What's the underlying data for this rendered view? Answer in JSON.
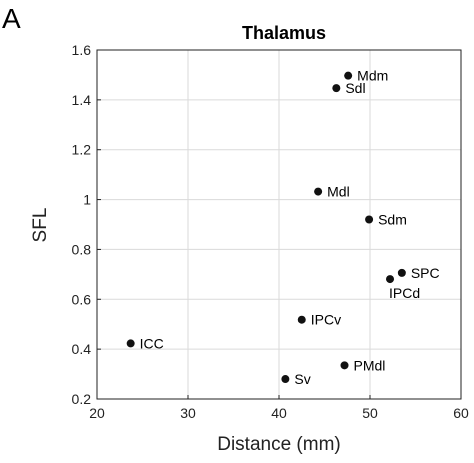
{
  "panel_letter": "A",
  "chart_data": {
    "type": "scatter",
    "title": "Thalamus",
    "xlabel": "Distance (mm)",
    "ylabel": "SFL",
    "xlim": [
      20,
      60
    ],
    "ylim": [
      0.2,
      1.6
    ],
    "x_ticks": [
      20,
      30,
      40,
      50,
      60
    ],
    "y_ticks": [
      0.2,
      0.4,
      0.6,
      0.8,
      1,
      1.2,
      1.4,
      1.6
    ],
    "grid": true,
    "legend": "none",
    "marker_color": "#111111",
    "points": [
      {
        "label": "Mdm",
        "x": 47.6,
        "y": 1.497,
        "label_side": "right"
      },
      {
        "label": "Sdl",
        "x": 46.3,
        "y": 1.447,
        "label_side": "right"
      },
      {
        "label": "Mdl",
        "x": 44.3,
        "y": 1.032,
        "label_side": "right"
      },
      {
        "label": "Sdm",
        "x": 49.9,
        "y": 0.92,
        "label_side": "right"
      },
      {
        "label": "SPC",
        "x": 53.5,
        "y": 0.706,
        "label_side": "right"
      },
      {
        "label": "IPCd",
        "x": 52.2,
        "y": 0.681,
        "label_side": "below"
      },
      {
        "label": "IPCv",
        "x": 42.5,
        "y": 0.518,
        "label_side": "right"
      },
      {
        "label": "ICC",
        "x": 23.7,
        "y": 0.423,
        "label_side": "right"
      },
      {
        "label": "PMdl",
        "x": 47.2,
        "y": 0.335,
        "label_side": "right"
      },
      {
        "label": "Sv",
        "x": 40.7,
        "y": 0.28,
        "label_side": "right"
      }
    ]
  }
}
